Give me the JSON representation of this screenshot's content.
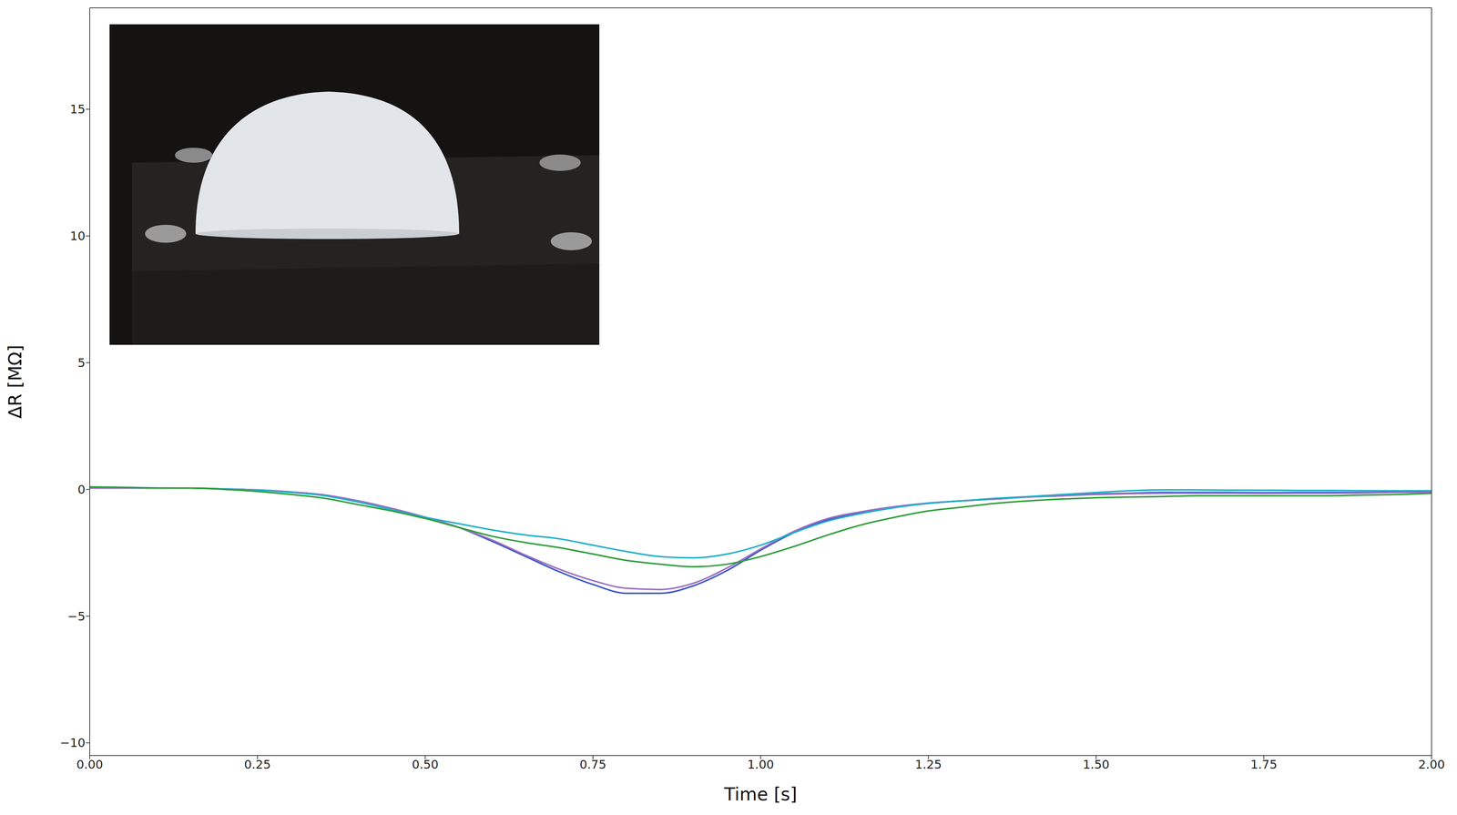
{
  "chart_data": {
    "type": "line",
    "x_label": "Time [s]",
    "y_label": "ΔR [MΩ]",
    "xlim": [
      0,
      2
    ],
    "ylim": [
      -10.5,
      19
    ],
    "xticks": [
      {
        "value": 0,
        "label": "0.00"
      },
      {
        "value": 0.25,
        "label": "0.25"
      },
      {
        "value": 0.5,
        "label": "0.50"
      },
      {
        "value": 0.75,
        "label": "0.75"
      },
      {
        "value": 1,
        "label": "1.00"
      },
      {
        "value": 1.25,
        "label": "1.25"
      },
      {
        "value": 1.5,
        "label": "1.50"
      },
      {
        "value": 1.75,
        "label": "1.75"
      },
      {
        "value": 2,
        "label": "2.00"
      }
    ],
    "yticks": [
      {
        "value": -10,
        "label": "−10"
      },
      {
        "value": -5,
        "label": "−5"
      },
      0,
      5,
      10,
      15
    ],
    "grid": false,
    "x": [
      0,
      0.05,
      0.1,
      0.15,
      0.2,
      0.25,
      0.3,
      0.35,
      0.4,
      0.45,
      0.5,
      0.55,
      0.6,
      0.65,
      0.7,
      0.75,
      0.8,
      0.85,
      0.9,
      0.95,
      1.0,
      1.05,
      1.1,
      1.15,
      1.2,
      1.25,
      1.3,
      1.35,
      1.4,
      1.45,
      1.5,
      1.55,
      1.6,
      1.65,
      1.7,
      1.75,
      1.8,
      1.85,
      1.9,
      1.95,
      2.0
    ],
    "series": [
      {
        "color": "#3a56c8",
        "values": [
          0.05,
          0.05,
          0.05,
          0.05,
          0.02,
          -0.02,
          -0.1,
          -0.22,
          -0.45,
          -0.75,
          -1.1,
          -1.5,
          -2.05,
          -2.65,
          -3.25,
          -3.75,
          -4.1,
          -4.1,
          -3.8,
          -3.2,
          -2.4,
          -1.7,
          -1.2,
          -0.9,
          -0.7,
          -0.55,
          -0.45,
          -0.38,
          -0.3,
          -0.25,
          -0.18,
          -0.15,
          -0.12,
          -0.12,
          -0.12,
          -0.13,
          -0.12,
          -0.12,
          -0.12,
          -0.1,
          -0.1
        ]
      },
      {
        "color": "#9a6fc4",
        "values": [
          0.05,
          0.05,
          0.05,
          0.05,
          0.02,
          -0.02,
          -0.1,
          -0.22,
          -0.45,
          -0.75,
          -1.1,
          -1.5,
          -2.0,
          -2.6,
          -3.15,
          -3.6,
          -3.9,
          -3.95,
          -3.7,
          -3.1,
          -2.35,
          -1.65,
          -1.15,
          -0.88,
          -0.68,
          -0.54,
          -0.45,
          -0.38,
          -0.3,
          -0.25,
          -0.2,
          -0.17,
          -0.15,
          -0.15,
          -0.15,
          -0.16,
          -0.15,
          -0.15,
          -0.14,
          -0.12,
          -0.12
        ]
      },
      {
        "color": "#1fb0c8",
        "values": [
          0.1,
          0.08,
          0.06,
          0.05,
          0.02,
          -0.03,
          -0.12,
          -0.25,
          -0.5,
          -0.8,
          -1.1,
          -1.35,
          -1.6,
          -1.8,
          -1.95,
          -2.2,
          -2.45,
          -2.65,
          -2.7,
          -2.55,
          -2.2,
          -1.7,
          -1.25,
          -0.95,
          -0.72,
          -0.55,
          -0.45,
          -0.35,
          -0.28,
          -0.2,
          -0.12,
          -0.05,
          -0.02,
          -0.02,
          -0.03,
          -0.03,
          -0.04,
          -0.04,
          -0.05,
          -0.05,
          -0.05
        ]
      },
      {
        "color": "#2e9e3a",
        "values": [
          0.1,
          0.08,
          0.05,
          0.05,
          0.0,
          -0.08,
          -0.2,
          -0.35,
          -0.6,
          -0.85,
          -1.15,
          -1.5,
          -1.85,
          -2.1,
          -2.3,
          -2.55,
          -2.8,
          -2.95,
          -3.05,
          -2.95,
          -2.65,
          -2.25,
          -1.8,
          -1.4,
          -1.1,
          -0.85,
          -0.7,
          -0.55,
          -0.45,
          -0.38,
          -0.33,
          -0.3,
          -0.28,
          -0.25,
          -0.25,
          -0.25,
          -0.25,
          -0.25,
          -0.22,
          -0.2,
          -0.15
        ]
      }
    ]
  }
}
